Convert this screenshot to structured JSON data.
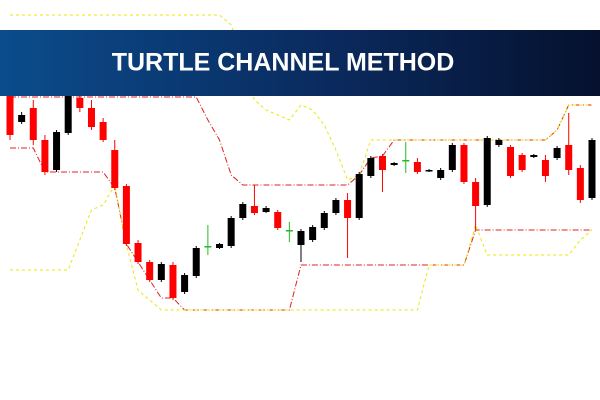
{
  "chart_data": {
    "type": "candlestick",
    "title": "TURTLE CHANNEL METHOD",
    "ylim": [
      0,
      400
    ],
    "up_color": "#000000",
    "down_color": "#ff0000",
    "doji_color": "#22bb22",
    "open": [
      305,
      278,
      292,
      260,
      230,
      267,
      302,
      292,
      278,
      250,
      214,
      157,
      138,
      120,
      135,
      108,
      124,
      154,
      152,
      154,
      182,
      194,
      188,
      188,
      170,
      155,
      160,
      172,
      187,
      200,
      182,
      224,
      244,
      235,
      240,
      238,
      229,
      222,
      230,
      255,
      218,
      195,
      255,
      253,
      245,
      243,
      240,
      242,
      255,
      232,
      202
    ],
    "high": [
      315,
      288,
      300,
      265,
      270,
      310,
      305,
      300,
      282,
      260,
      216,
      160,
      140,
      138,
      138,
      127,
      154,
      175,
      157,
      184,
      198,
      215,
      194,
      190,
      178,
      171,
      175,
      189,
      202,
      207,
      228,
      244,
      246,
      238,
      258,
      242,
      231,
      232,
      257,
      257,
      222,
      264,
      262,
      255,
      247,
      246,
      245,
      254,
      287,
      235,
      262
    ],
    "low": [
      260,
      276,
      255,
      225,
      228,
      265,
      288,
      270,
      258,
      210,
      154,
      136,
      118,
      118,
      100,
      106,
      122,
      145,
      151,
      152,
      180,
      185,
      187,
      170,
      158,
      138,
      158,
      170,
      185,
      142,
      180,
      222,
      208,
      234,
      227,
      226,
      228,
      220,
      228,
      216,
      170,
      193,
      253,
      222,
      228,
      242,
      218,
      240,
      225,
      197,
      200
    ],
    "close": [
      265,
      285,
      260,
      228,
      268,
      305,
      292,
      273,
      260,
      212,
      156,
      138,
      120,
      136,
      102,
      125,
      152,
      154,
      156,
      182,
      196,
      187,
      192,
      172,
      170,
      169,
      173,
      187,
      200,
      182,
      226,
      242,
      230,
      237,
      240,
      228,
      230,
      230,
      255,
      218,
      194,
      262,
      260,
      224,
      230,
      245,
      224,
      252,
      230,
      200,
      260
    ],
    "lines": [
      {
        "color": "#e02020",
        "style": "dashdot",
        "values": [
          303,
          303,
          303,
          303,
          303,
          303,
          303,
          303,
          303,
          303,
          303,
          303,
          303,
          303,
          303,
          303,
          303,
          280,
          260,
          225,
          215,
          215,
          215,
          215,
          215,
          215,
          215,
          215,
          215,
          215,
          225,
          242,
          244,
          260,
          260,
          260,
          260,
          260,
          260,
          260,
          260,
          260,
          260,
          260,
          260,
          260,
          260,
          270,
          295,
          295,
          295
        ]
      },
      {
        "color": "#e02020",
        "style": "dashdot",
        "values": [
          252,
          252,
          252,
          228,
          228,
          228,
          228,
          228,
          228,
          212,
          156,
          138,
          120,
          102,
          102,
          90,
          90,
          90,
          90,
          90,
          90,
          90,
          90,
          90,
          90,
          135,
          135,
          135,
          135,
          135,
          135,
          135,
          135,
          135,
          135,
          135,
          135,
          135,
          135,
          135,
          170,
          170,
          170,
          170,
          170,
          170,
          170,
          170,
          170,
          170,
          170
        ]
      },
      {
        "color": "#e8e800",
        "style": "dashed",
        "values": [
          385,
          385,
          385,
          385,
          385,
          385,
          385,
          385,
          385,
          385,
          385,
          385,
          385,
          385,
          385,
          385,
          385,
          385,
          385,
          375,
          340,
          300,
          290,
          285,
          280,
          295,
          290,
          275,
          250,
          220,
          225,
          260,
          260,
          260,
          260,
          260,
          260,
          260,
          260,
          260,
          260,
          260,
          260,
          260,
          260,
          260,
          260,
          270,
          295,
          295,
          295
        ]
      },
      {
        "color": "#e8e800",
        "style": "dashed",
        "values": [
          130,
          130,
          130,
          130,
          130,
          130,
          160,
          190,
          195,
          215,
          155,
          110,
          100,
          90,
          90,
          90,
          90,
          90,
          90,
          90,
          90,
          90,
          90,
          90,
          90,
          90,
          90,
          90,
          90,
          90,
          90,
          90,
          90,
          90,
          90,
          90,
          135,
          135,
          135,
          135,
          175,
          145,
          145,
          145,
          145,
          145,
          145,
          145,
          145,
          160,
          170
        ]
      }
    ]
  }
}
